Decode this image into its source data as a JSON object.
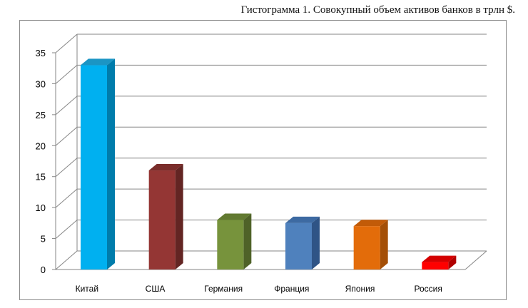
{
  "chart_data": {
    "type": "bar",
    "title": "Гистограмма 1. Совокупный объем активов банков в трлн $.",
    "categories": [
      "Китай",
      "США",
      "Германия",
      "Франция",
      "Япония",
      "Россия"
    ],
    "values": [
      33.0,
      16.0,
      8.0,
      7.5,
      7.0,
      1.2
    ],
    "ylim": [
      0,
      35
    ],
    "yticks": [
      0,
      5,
      10,
      15,
      20,
      25,
      30,
      35
    ],
    "grid": true,
    "legend": "none",
    "colors": [
      {
        "front": "#00b0f0",
        "side": "#007cab",
        "top": "#1b95c4"
      },
      {
        "front": "#943634",
        "side": "#632523",
        "top": "#7a2d2b"
      },
      {
        "front": "#77933c",
        "side": "#4f6228",
        "top": "#627a31"
      },
      {
        "front": "#4f81bd",
        "side": "#2f5486",
        "top": "#3d6aa2"
      },
      {
        "front": "#e36c0a",
        "side": "#a44f07",
        "top": "#c25b08"
      },
      {
        "front": "#ff0000",
        "side": "#b00000",
        "top": "#d40000"
      }
    ]
  }
}
